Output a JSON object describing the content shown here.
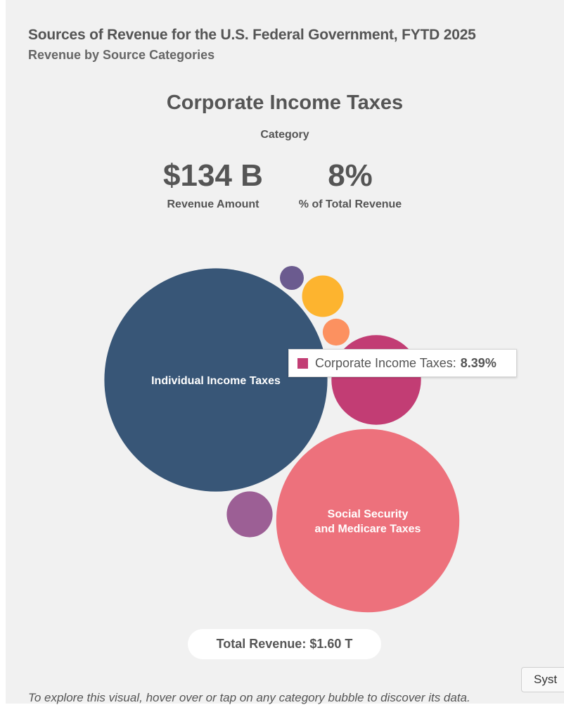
{
  "header": {
    "title": "Sources of Revenue for the U.S. Federal Government, FYTD 2025",
    "subtitle": "Revenue by Source Categories"
  },
  "selected": {
    "category": "Corporate Income Taxes",
    "category_label": "Category",
    "amount": "$134 B",
    "amount_label": "Revenue Amount",
    "percent": "8%",
    "percent_label": "% of Total Revenue"
  },
  "tooltip": {
    "label": "Corporate Income Taxes:",
    "value": "8.39%"
  },
  "total": {
    "text": "Total Revenue: $1.60 T"
  },
  "system_button": "Syst",
  "footer": {
    "text": "To explore this visual, hover over or tap on any category bubble to discover its data."
  },
  "chart_data": {
    "type": "bubble",
    "title": "Sources of Revenue for the U.S. Federal Government, FYTD 2025",
    "subtitle": "Revenue by Source Categories",
    "total_revenue": "$1.60 T",
    "bubbles": [
      {
        "id": "individual",
        "label_lines": [
          "Individual Income Taxes"
        ],
        "share": 0.52,
        "color": "#385677"
      },
      {
        "id": "social",
        "label_lines": [
          "Social Security",
          "and Medicare Taxes"
        ],
        "share": 0.35,
        "color": "#ed717c"
      },
      {
        "id": "corporate",
        "label_lines": [],
        "share": 0.0839,
        "color": "#c23d74"
      },
      {
        "id": "gold",
        "label_lines": [],
        "share": 0.018,
        "color": "#fdb42f"
      },
      {
        "id": "mauve",
        "label_lines": [],
        "share": 0.022,
        "color": "#9c5f95"
      },
      {
        "id": "salmon",
        "label_lines": [],
        "share": 0.0075,
        "color": "#fc9160"
      },
      {
        "id": "violet",
        "label_lines": [],
        "share": 0.006,
        "color": "#6b5b8f"
      }
    ]
  }
}
